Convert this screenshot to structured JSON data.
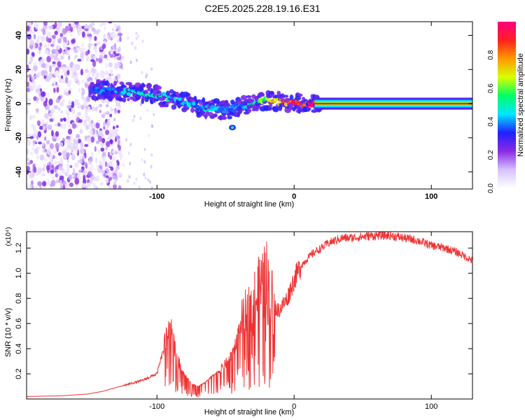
{
  "title": "C2E5.2025.228.19.16.E31",
  "chart_data": [
    {
      "type": "heatmap",
      "xlabel": "Height of straight line (km)",
      "ylabel": "Frequency (Hz)",
      "xlim": [
        -195,
        130
      ],
      "ylim": [
        -50,
        48
      ],
      "xticks": [
        -100,
        0,
        100
      ],
      "xtick_labels": [
        "-100",
        "0",
        "100"
      ],
      "yticks": [
        -40,
        -20,
        0,
        20,
        40
      ],
      "ytick_labels": [
        "-40",
        "-20",
        "0",
        "20",
        "40"
      ],
      "colorbar": {
        "label": "Normalized spectral amplitude",
        "range": [
          0,
          1
        ],
        "ticks": [
          0.0,
          0.2,
          0.4,
          0.6,
          0.8
        ],
        "tick_labels": [
          "0.0",
          "0.2",
          "0.4",
          "0.6",
          "0.8"
        ],
        "colormap": [
          "#ffffff",
          "#d7c2ff",
          "#8a2be2",
          "#2020ff",
          "#00e5ff",
          "#00ff66",
          "#d8ff00",
          "#ff9900",
          "#ff2020",
          "#ff0080"
        ]
      },
      "ridge": {
        "x": [
          -145,
          -130,
          -115,
          -100,
          -90,
          -80,
          -70,
          -60,
          -50,
          -40,
          -30,
          -20,
          -10,
          0,
          10,
          20,
          40,
          60,
          80,
          100,
          120,
          130
        ],
        "freq": [
          8,
          7,
          7,
          5,
          3,
          1,
          -2,
          -3,
          -4,
          -2,
          0,
          2,
          1,
          0.5,
          0,
          0,
          0,
          0,
          0,
          0,
          0,
          0
        ],
        "amplitude": [
          0.35,
          0.4,
          0.45,
          0.45,
          0.45,
          0.45,
          0.4,
          0.45,
          0.4,
          0.4,
          0.5,
          0.65,
          0.75,
          0.85,
          0.9,
          0.92,
          0.92,
          0.92,
          0.92,
          0.92,
          0.92,
          0.92
        ]
      },
      "noise_region_x": [
        -195,
        -132
      ]
    },
    {
      "type": "line",
      "xlabel": "Height of straight line (km)",
      "ylabel": "SNR (10 * v/v)",
      "y_multiplier": "(x10⁴)",
      "xlim": [
        -195,
        130
      ],
      "ylim": [
        0.0,
        1.33
      ],
      "xticks": [
        -100,
        0,
        100
      ],
      "xtick_labels": [
        "-100",
        "0",
        "100"
      ],
      "yticks": [
        0.2,
        0.4,
        0.6,
        0.8,
        1.0,
        1.2
      ],
      "ytick_labels": [
        "0.2",
        "0.4",
        "0.6",
        "0.8",
        "1.0",
        "1.2"
      ],
      "color": "#ee3333",
      "series": [
        {
          "x": [
            -195,
            -170,
            -150,
            -140,
            -130,
            -120,
            -110,
            -100,
            -95,
            -92,
            -90,
            -88,
            -85,
            -80,
            -75,
            -70,
            -65,
            -60,
            -55,
            -50,
            -45,
            -40,
            -35,
            -30,
            -25,
            -22,
            -20,
            -18,
            -15,
            -12,
            -10,
            -5,
            0,
            5,
            10,
            15,
            20,
            25,
            30,
            35,
            40,
            50,
            60,
            70,
            80,
            90,
            100,
            110,
            120,
            130
          ],
          "y": [
            0.02,
            0.025,
            0.04,
            0.06,
            0.09,
            0.12,
            0.15,
            0.2,
            0.4,
            0.55,
            0.6,
            0.45,
            0.3,
            0.2,
            0.12,
            0.1,
            0.13,
            0.18,
            0.22,
            0.28,
            0.35,
            0.55,
            0.65,
            0.75,
            0.85,
            0.9,
            0.95,
            0.82,
            0.75,
            0.7,
            0.72,
            0.8,
            0.95,
            1.06,
            1.12,
            1.17,
            1.2,
            1.24,
            1.26,
            1.28,
            1.28,
            1.29,
            1.3,
            1.3,
            1.28,
            1.26,
            1.22,
            1.2,
            1.16,
            1.1
          ]
        }
      ]
    }
  ]
}
